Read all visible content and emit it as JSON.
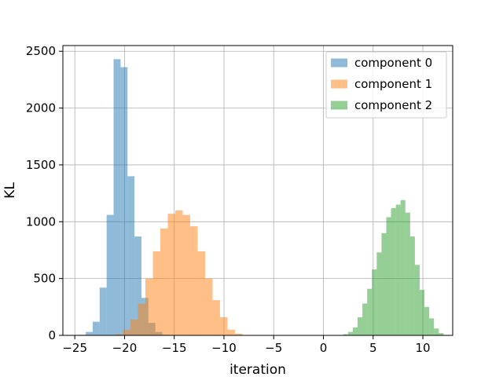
{
  "chart_data": {
    "type": "bar",
    "subtype": "overlapping-histogram",
    "title": "",
    "xlabel": "iteration",
    "ylabel": "KL",
    "xlim": [
      -26.2,
      13.0
    ],
    "ylim": [
      0,
      2550
    ],
    "xticks": [
      -25,
      -20,
      -15,
      -10,
      -5,
      0,
      5,
      10
    ],
    "xtick_labels": [
      "−25",
      "−20",
      "−15",
      "−10",
      "−5",
      "0",
      "5",
      "10"
    ],
    "yticks": [
      0,
      500,
      1000,
      1500,
      2000,
      2500
    ],
    "ytick_labels": [
      "0",
      "500",
      "1000",
      "1500",
      "2000",
      "2500"
    ],
    "grid": true,
    "legend": "top-right",
    "series": [
      {
        "name": "component 0",
        "color": "#1f77b4",
        "opacity": 0.5,
        "x0": -24.6,
        "bin_width": 0.7,
        "values": [
          5,
          30,
          120,
          420,
          1060,
          2430,
          2360,
          1400,
          870,
          330,
          110,
          30,
          5
        ]
      },
      {
        "name": "component 1",
        "color": "#ff7f0e",
        "opacity": 0.5,
        "x0": -20.9,
        "bin_width": 0.75,
        "values": [
          10,
          50,
          140,
          280,
          500,
          740,
          940,
          1070,
          1100,
          1060,
          960,
          740,
          500,
          310,
          160,
          50,
          15
        ]
      },
      {
        "name": "component 2",
        "color": "#2ca02c",
        "opacity": 0.5,
        "x0": 2.0,
        "bin_width": 0.48,
        "values": [
          10,
          30,
          70,
          160,
          280,
          410,
          580,
          730,
          900,
          1040,
          1120,
          1150,
          1190,
          1080,
          870,
          620,
          400,
          250,
          150,
          60,
          20
        ]
      }
    ]
  }
}
